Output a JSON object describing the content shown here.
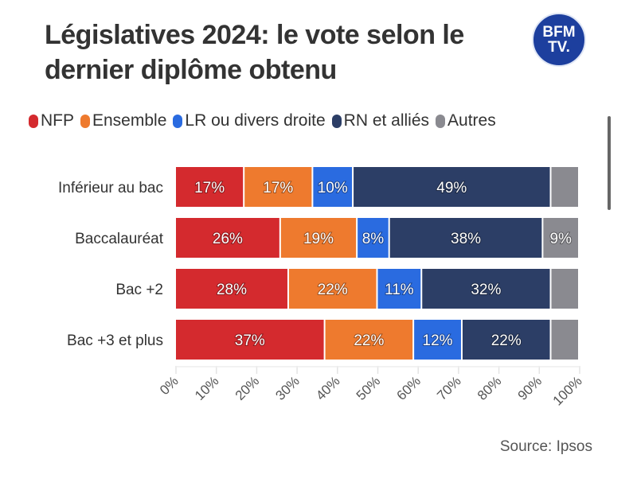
{
  "title": "Législatives 2024: le vote selon le dernier diplôme obtenu",
  "logo_text": "BFM TV.",
  "source": "Source: Ipsos",
  "chart_data": {
    "type": "bar",
    "orientation": "horizontal",
    "stacked": true,
    "categories": [
      "Inférieur au bac",
      "Baccalauréat",
      "Bac +2",
      "Bac +3 et plus"
    ],
    "series": [
      {
        "name": "NFP",
        "color": "#d42a2e",
        "values": [
          17,
          26,
          28,
          37
        ],
        "labels": [
          "17%",
          "26%",
          "28%",
          "37%"
        ]
      },
      {
        "name": "Ensemble",
        "color": "#ee7a2e",
        "values": [
          17,
          19,
          22,
          22
        ],
        "labels": [
          "17%",
          "19%",
          "22%",
          "22%"
        ]
      },
      {
        "name": "LR ou divers droite",
        "color": "#2a6be0",
        "values": [
          10,
          8,
          11,
          12
        ],
        "labels": [
          "10%",
          "8%",
          "11%",
          "12%"
        ]
      },
      {
        "name": "RN et alliés",
        "color": "#2c3e66",
        "values": [
          49,
          38,
          32,
          22
        ],
        "labels": [
          "49%",
          "38%",
          "32%",
          "22%"
        ]
      },
      {
        "name": "Autres",
        "color": "#8a8a90",
        "values": [
          7,
          9,
          7,
          7
        ],
        "labels": [
          "",
          "9%",
          "",
          ""
        ]
      }
    ],
    "xlim": [
      0,
      100
    ],
    "xticks": [
      "0%",
      "10%",
      "20%",
      "30%",
      "40%",
      "50%",
      "60%",
      "70%",
      "80%",
      "90%",
      "100%"
    ],
    "legend": "top",
    "grid": false
  }
}
